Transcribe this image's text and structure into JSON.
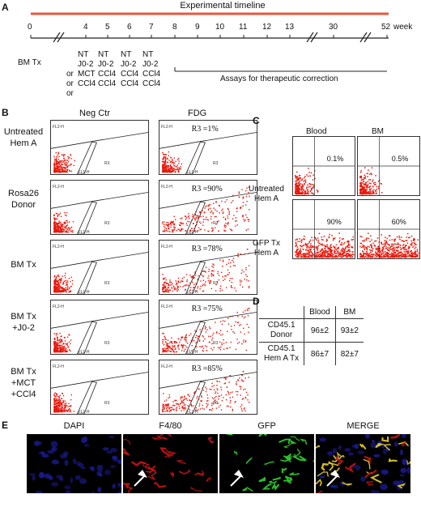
{
  "panelA": {
    "letter": "A",
    "title": "Experimental timeline",
    "week_label": "week",
    "ticks": [
      "0",
      "4",
      "5",
      "6",
      "7",
      "8",
      "9",
      "10",
      "11",
      "12",
      "13",
      "30",
      "52"
    ],
    "bm_tx": "BM Tx",
    "or": "or",
    "col_labels": [
      [
        "NT",
        "J0-2",
        "MCT",
        "CCl4"
      ],
      [
        "NT",
        "J0-2",
        "CCl4",
        "CCl4"
      ],
      [
        "NT",
        "J0-2",
        "CCl4",
        "CCl4"
      ],
      [
        "NT",
        "J0-2",
        "CCl4",
        "CCl4"
      ]
    ],
    "assays": "Assays for therapeutic correction",
    "colors": {
      "timeline": "#e8573f"
    }
  },
  "panelB": {
    "letter": "B",
    "col_headers": [
      "Neg Ctr",
      "FDG"
    ],
    "rows": [
      {
        "label": "Untreated\nHem A",
        "r3": "R3 =1%"
      },
      {
        "label": "Rosa26\nDonor",
        "r3": "R3 =90%"
      },
      {
        "label": "BM Tx",
        "r3": "R3 =78%"
      },
      {
        "label": "BM Tx\n+J0-2",
        "r3": "R3 =75%"
      },
      {
        "label": "BM Tx\n+MCT\n+CCl4",
        "r3": "R3 =85%"
      }
    ],
    "axis": {
      "x": "FL1-H",
      "y": "FL2-H"
    },
    "gate": "R3"
  },
  "panelC": {
    "letter": "C",
    "col_headers": [
      "Blood",
      "BM"
    ],
    "rows": [
      {
        "label": "Untreated\nHem A",
        "values": [
          "0.1%",
          "0.5%"
        ]
      },
      {
        "label": "GFP Tx\nHem A",
        "values": [
          "90%",
          "60%"
        ]
      }
    ],
    "colors": {
      "dots": "#e8180c"
    }
  },
  "panelD": {
    "letter": "D",
    "headers": [
      "",
      "Blood",
      "BM"
    ],
    "rows": [
      {
        "label": "CD45.1\nDonor",
        "blood": "96±2",
        "bm": "93±2"
      },
      {
        "label": "CD45.1\nHem A Tx",
        "blood": "86±7",
        "bm": "82±7"
      }
    ]
  },
  "panelE": {
    "letter": "E",
    "labels": [
      "DAPI",
      "F4/80",
      "GFP",
      "MERGE"
    ],
    "colors": {
      "dapi": "#1a1a8c",
      "f480": "#c81414",
      "gfp": "#2fd12f"
    }
  }
}
